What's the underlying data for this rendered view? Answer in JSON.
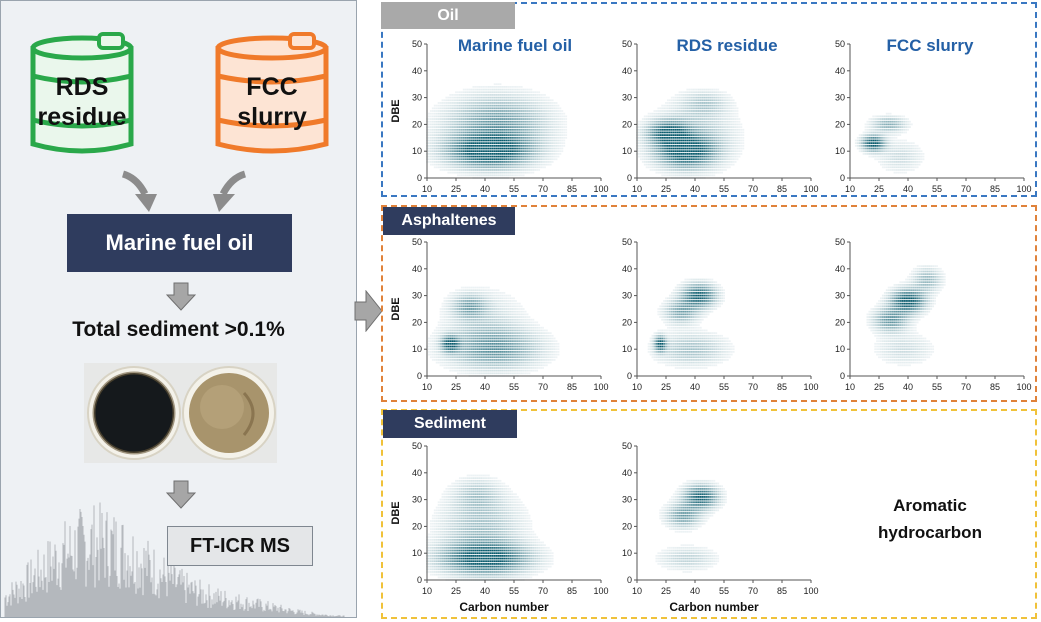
{
  "left": {
    "drums": [
      {
        "label": "RDS residue",
        "line1": "RDS",
        "line2": "residue",
        "color": "#2aa84a",
        "fill": "#eaf7ec"
      },
      {
        "label": "FCC slurry",
        "line1": "FCC",
        "line2": "slurry",
        "color": "#f07a2a",
        "fill": "#fde4d4"
      }
    ],
    "blend_label": "Marine fuel oil",
    "sediment_label": "Total sediment >0.1%",
    "method_label": "FT-ICR MS"
  },
  "panels": [
    {
      "tab": "Oil",
      "tab_color": "#a9a9a9",
      "border_color": "#3a78c2"
    },
    {
      "tab": "Asphaltenes",
      "tab_color": "#2f3c5e",
      "border_color": "#e0823a"
    },
    {
      "tab": "Sediment",
      "tab_color": "#2f3c5e",
      "border_color": "#f0c23a"
    }
  ],
  "column_titles": [
    "Marine fuel oil",
    "RDS residue",
    "FCC slurry"
  ],
  "annotation": {
    "line1": "Aromatic",
    "line2": "hydrocarbon"
  },
  "axes": {
    "ylabel": "DBE",
    "xlabel": "Carbon number",
    "x_ticks": [
      "10",
      "25",
      "40",
      "55",
      "70",
      "85",
      "100"
    ],
    "y_ticks": [
      "0",
      "10",
      "20",
      "30",
      "40",
      "50"
    ]
  },
  "colors": {
    "point": "#0b5c6e",
    "tab_text": "#ffffff",
    "title": "#2460a6"
  },
  "chart_data": [
    {
      "type": "heatmap",
      "panel": "Oil",
      "sample": "Marine fuel oil",
      "xlim": [
        10,
        100
      ],
      "ylim": [
        0,
        50
      ],
      "clouds": [
        [
          42,
          10,
          14,
          4,
          1.0
        ],
        [
          45,
          18,
          18,
          8,
          0.35
        ],
        [
          48,
          22,
          16,
          6,
          0.25
        ]
      ]
    },
    {
      "type": "heatmap",
      "panel": "Oil",
      "sample": "RDS residue",
      "xlim": [
        10,
        100
      ],
      "ylim": [
        0,
        50
      ],
      "clouds": [
        [
          35,
          10,
          10,
          4,
          0.95
        ],
        [
          26,
          17,
          7,
          3,
          0.8
        ],
        [
          40,
          16,
          14,
          8,
          0.3
        ],
        [
          45,
          28,
          8,
          3,
          0.25
        ]
      ]
    },
    {
      "type": "heatmap",
      "panel": "Oil",
      "sample": "FCC slurry",
      "xlim": [
        10,
        100
      ],
      "ylim": [
        0,
        50
      ],
      "clouds": [
        [
          22,
          13,
          4,
          2,
          1.0
        ],
        [
          30,
          20,
          6,
          2,
          0.45
        ],
        [
          36,
          8,
          8,
          4,
          0.2
        ]
      ]
    },
    {
      "type": "heatmap",
      "panel": "Asphaltenes",
      "sample": "Marine fuel oil",
      "xlim": [
        10,
        100
      ],
      "ylim": [
        0,
        50
      ],
      "clouds": [
        [
          45,
          10,
          16,
          5,
          0.55
        ],
        [
          32,
          26,
          6,
          3,
          0.45
        ],
        [
          22,
          12,
          3,
          2,
          0.9
        ],
        [
          40,
          20,
          14,
          8,
          0.2
        ]
      ]
    },
    {
      "type": "heatmap",
      "panel": "Asphaltenes",
      "sample": "RDS residue",
      "xlim": [
        10,
        100
      ],
      "ylim": [
        0,
        50
      ],
      "clouds": [
        [
          42,
          30,
          6,
          3,
          0.9
        ],
        [
          33,
          24,
          6,
          3,
          0.5
        ],
        [
          38,
          10,
          12,
          4,
          0.35
        ],
        [
          22,
          12,
          2,
          2,
          0.9
        ]
      ]
    },
    {
      "type": "heatmap",
      "panel": "Asphaltenes",
      "sample": "FCC slurry",
      "xlim": [
        10,
        100
      ],
      "ylim": [
        0,
        50
      ],
      "clouds": [
        [
          40,
          28,
          6,
          3,
          1.0
        ],
        [
          31,
          21,
          6,
          3,
          0.6
        ],
        [
          50,
          36,
          5,
          3,
          0.4
        ],
        [
          38,
          10,
          10,
          4,
          0.2
        ]
      ]
    },
    {
      "type": "heatmap",
      "panel": "Sediment",
      "sample": "Marine fuel oil",
      "xlim": [
        10,
        100
      ],
      "ylim": [
        0,
        50
      ],
      "clouds": [
        [
          40,
          8,
          15,
          4,
          1.0
        ],
        [
          38,
          20,
          14,
          8,
          0.35
        ],
        [
          36,
          32,
          8,
          4,
          0.25
        ]
      ]
    },
    {
      "type": "heatmap",
      "panel": "Sediment",
      "sample": "RDS residue",
      "xlim": [
        10,
        100
      ],
      "ylim": [
        0,
        50
      ],
      "clouds": [
        [
          43,
          31,
          6,
          3,
          0.9
        ],
        [
          34,
          24,
          6,
          3,
          0.55
        ],
        [
          36,
          8,
          10,
          3,
          0.25
        ]
      ]
    }
  ]
}
